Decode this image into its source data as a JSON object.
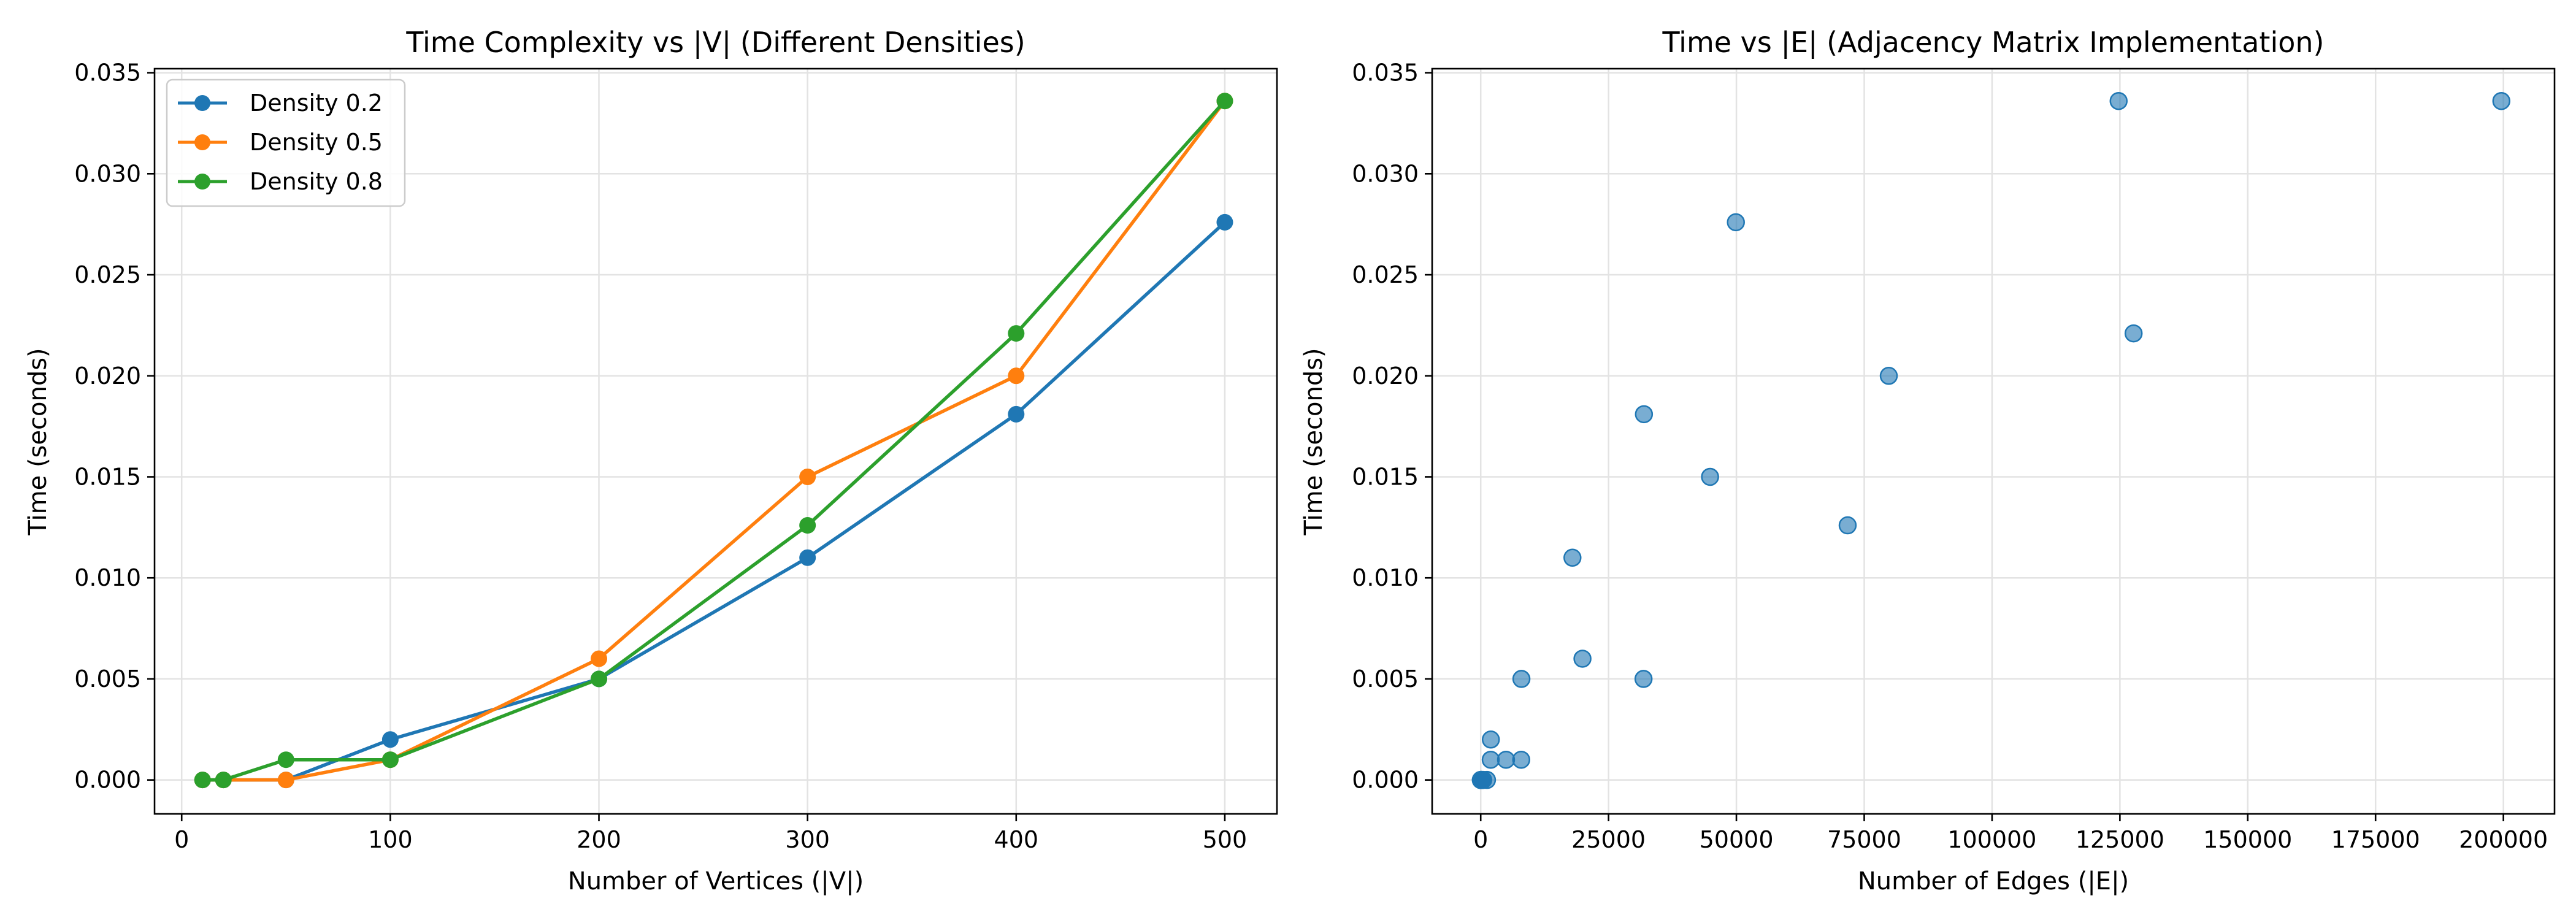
{
  "chart_data": [
    {
      "type": "line",
      "title": "Time Complexity vs |V| (Different Densities)",
      "xlabel": "Number of Vertices (|V|)",
      "ylabel": "Time (seconds)",
      "xlim": [
        -13,
        525
      ],
      "ylim": [
        -0.00168,
        0.0352
      ],
      "xticks": [
        0,
        100,
        200,
        300,
        400,
        500
      ],
      "xtick_labels": [
        "0",
        "100",
        "200",
        "300",
        "400",
        "500"
      ],
      "yticks": [
        0,
        0.005,
        0.01,
        0.015,
        0.02,
        0.025,
        0.03,
        0.035
      ],
      "ytick_labels": [
        "0.000",
        "0.005",
        "0.010",
        "0.015",
        "0.020",
        "0.025",
        "0.030",
        "0.035"
      ],
      "grid": true,
      "legend": "upper-left",
      "x": [
        10,
        20,
        50,
        100,
        200,
        300,
        400,
        500
      ],
      "series": [
        {
          "name": "Density 0.2",
          "color": "#1f77b4",
          "values": [
            0.0,
            0.0,
            0.0,
            0.002,
            0.005,
            0.011,
            0.0181,
            0.0276
          ]
        },
        {
          "name": "Density 0.5",
          "color": "#ff7f0e",
          "values": [
            0.0,
            0.0,
            0.0,
            0.001,
            0.006,
            0.015,
            0.02,
            0.0336
          ]
        },
        {
          "name": "Density 0.8",
          "color": "#2ca02c",
          "values": [
            0.0,
            0.0,
            0.001,
            0.001,
            0.005,
            0.0126,
            0.0221,
            0.0336
          ]
        }
      ]
    },
    {
      "type": "scatter",
      "title": "Time vs |E| (Adjacency Matrix Implementation)",
      "xlabel": "Number of Edges (|E|)",
      "ylabel": "Time (seconds)",
      "xlim": [
        -9500,
        210000
      ],
      "ylim": [
        -0.00168,
        0.0352
      ],
      "xticks": [
        0,
        25000,
        50000,
        75000,
        100000,
        125000,
        150000,
        175000,
        200000
      ],
      "xtick_labels": [
        "0",
        "25000",
        "50000",
        "75000",
        "100000",
        "125000",
        "150000",
        "175000",
        "200000"
      ],
      "yticks": [
        0,
        0.005,
        0.01,
        0.015,
        0.02,
        0.025,
        0.03,
        0.035
      ],
      "ytick_labels": [
        "0.000",
        "0.005",
        "0.010",
        "0.015",
        "0.020",
        "0.025",
        "0.030",
        "0.035"
      ],
      "grid": true,
      "color": "#1f77b4",
      "points": [
        [
          18,
          0.0
        ],
        [
          76,
          0.0
        ],
        [
          490,
          0.0
        ],
        [
          1980,
          0.002
        ],
        [
          7960,
          0.005
        ],
        [
          17940,
          0.011
        ],
        [
          31920,
          0.0181
        ],
        [
          49900,
          0.0276
        ],
        [
          45,
          0.0
        ],
        [
          190,
          0.0
        ],
        [
          1225,
          0.0
        ],
        [
          4950,
          0.001
        ],
        [
          19900,
          0.006
        ],
        [
          44850,
          0.015
        ],
        [
          79800,
          0.02
        ],
        [
          124750,
          0.0336
        ],
        [
          72,
          0.0
        ],
        [
          304,
          0.0
        ],
        [
          1960,
          0.001
        ],
        [
          7920,
          0.001
        ],
        [
          31840,
          0.005
        ],
        [
          71760,
          0.0126
        ],
        [
          127680,
          0.0221
        ],
        [
          199600,
          0.0336
        ]
      ]
    }
  ]
}
